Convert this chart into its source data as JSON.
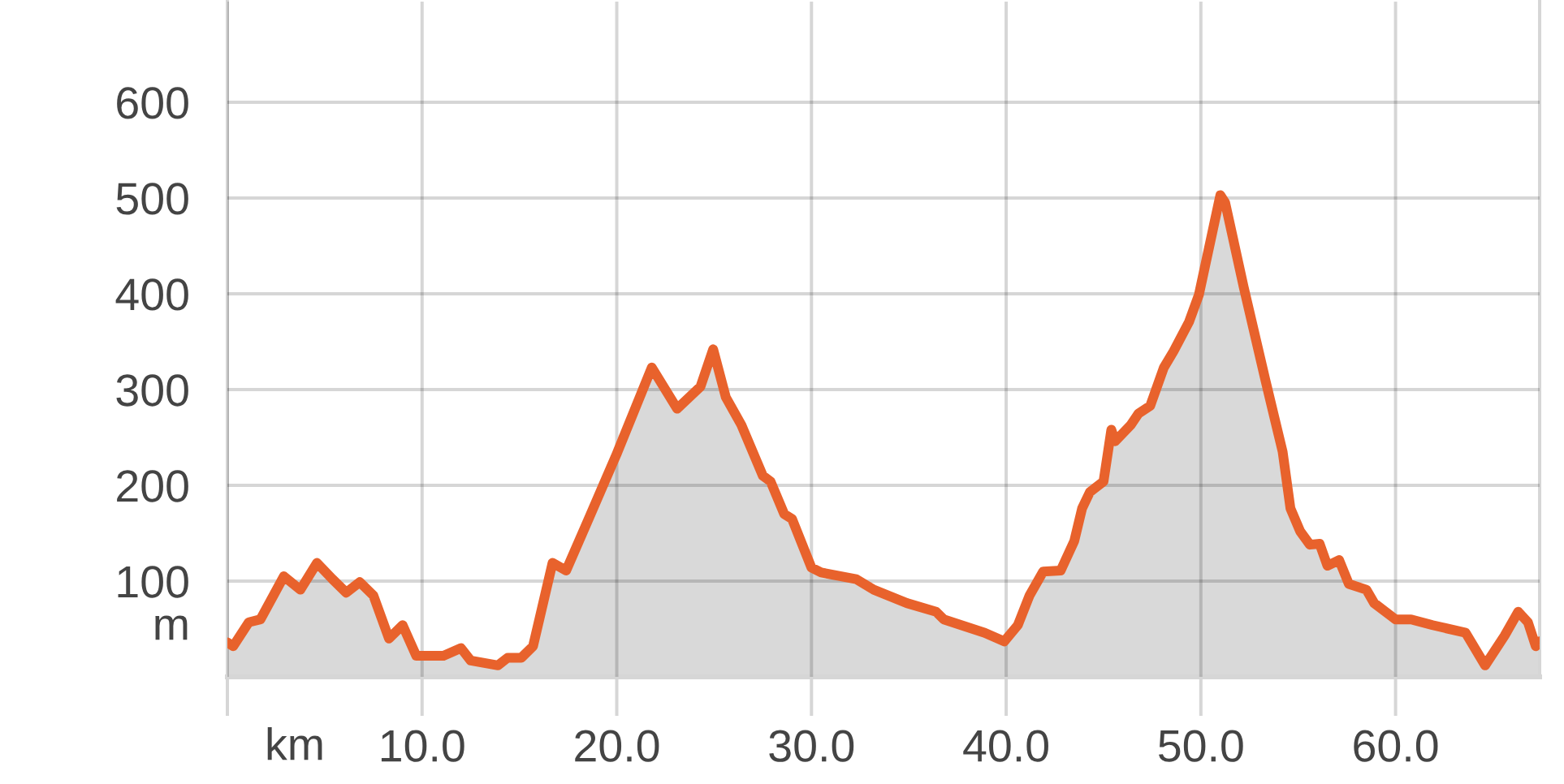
{
  "chart_data": {
    "type": "area",
    "color": "#e8622c",
    "x": [
      0,
      0.3,
      1.1,
      1.7,
      2.9,
      3.75,
      4.6,
      5.4,
      6.1,
      6.8,
      7.5,
      8.3,
      9.0,
      9.7,
      11.1,
      12.0,
      12.5,
      13.9,
      14.4,
      15.1,
      15.7,
      16.7,
      17.4,
      18.6,
      20.0,
      21.8,
      23.1,
      24.3,
      24.95,
      25.6,
      26.4,
      27.5,
      27.9,
      28.6,
      29.0,
      30.0,
      30.5,
      32.3,
      33.2,
      34.9,
      36.4,
      36.8,
      38.9,
      39.9,
      40.6,
      41.2,
      41.9,
      42.8,
      43.5,
      43.9,
      44.3,
      45.0,
      45.4,
      45.6,
      46.4,
      46.8,
      47.4,
      48.1,
      48.6,
      49.4,
      49.9,
      51.0,
      51.25,
      52.2,
      53.3,
      54.2,
      54.6,
      55.1,
      55.6,
      56.1,
      56.5,
      57.1,
      57.6,
      58.5,
      58.9,
      60.0,
      60.8,
      61.9,
      63.6,
      64.6,
      65.6,
      66.3,
      66.8,
      67.2,
      67.4
    ],
    "series": [
      {
        "color": "#d9d9d9",
        "values": [
          36,
          32,
          57,
          60,
          105,
          91,
          119,
          102,
          88,
          99,
          85,
          40,
          54,
          22,
          22,
          30,
          17,
          12,
          20,
          20,
          32,
          119,
          111,
          167,
          233,
          323,
          280,
          303,
          342,
          292,
          263,
          210,
          204,
          170,
          165,
          114,
          109,
          102,
          91,
          77,
          68,
          60,
          46,
          37,
          54,
          85,
          110,
          111,
          142,
          176,
          193,
          204,
          258,
          246,
          263,
          275,
          283,
          323,
          340,
          371,
          399,
          503,
          495,
          407,
          311,
          235,
          176,
          152,
          138,
          139,
          116,
          122,
          97,
          91,
          77,
          60,
          60,
          54,
          46,
          12,
          43,
          68,
          57,
          32,
          37
        ]
      }
    ],
    "xlabel": "km",
    "ylabel": "m",
    "xlim": [
      0,
      67.4
    ],
    "ylim": [
      0,
      705
    ],
    "xticks": [
      {
        "value": 0,
        "label": null
      },
      {
        "value": 10,
        "label": "10.0"
      },
      {
        "value": 20,
        "label": "20.0"
      },
      {
        "value": 30,
        "label": "30.0"
      },
      {
        "value": 40,
        "label": "40.0"
      },
      {
        "value": 50,
        "label": "50.0"
      },
      {
        "value": 60,
        "label": "60.0"
      }
    ],
    "yticks": [
      100,
      200,
      300,
      400,
      500,
      600
    ],
    "grid": true
  }
}
